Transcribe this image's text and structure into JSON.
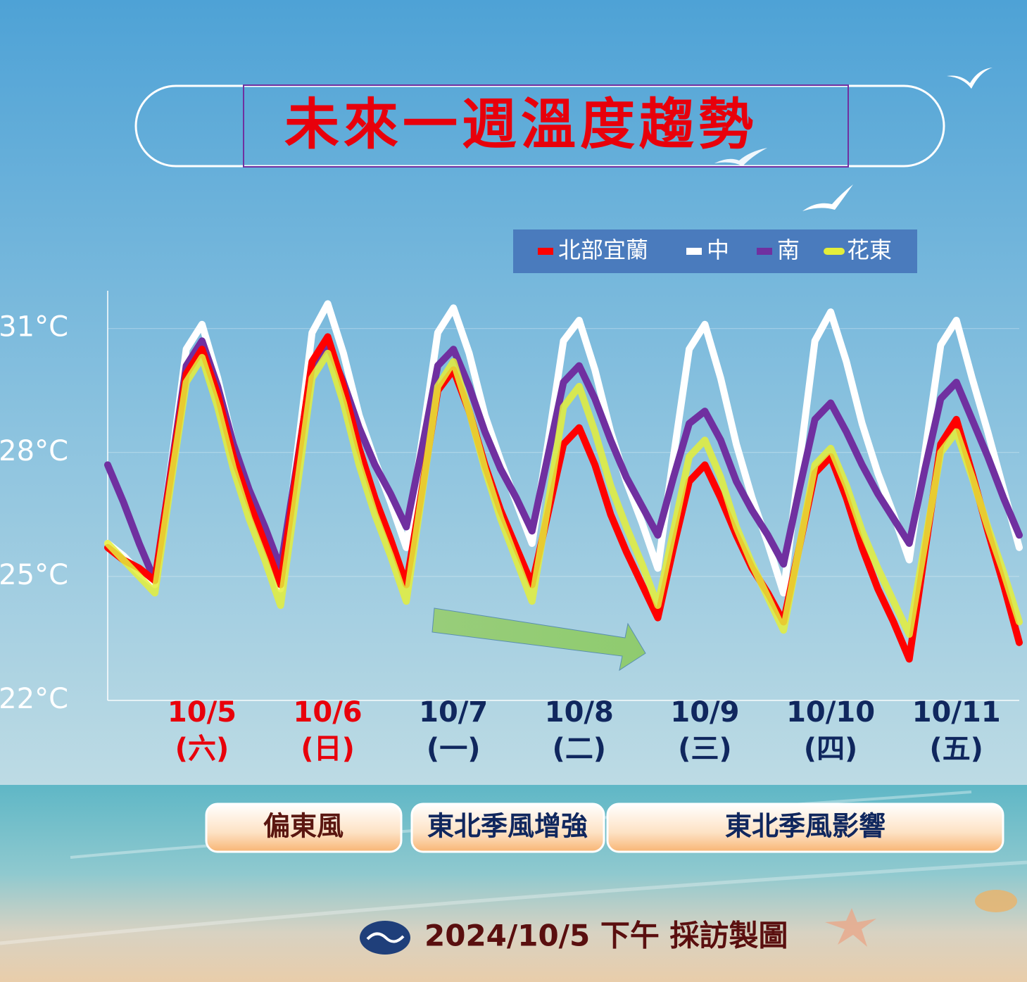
{
  "chart_data": {
    "type": "line",
    "title": "未來一週溫度趨勢",
    "categories": [
      null,
      null,
      null,
      null,
      null,
      null,
      "10/5",
      null,
      null,
      null,
      null,
      null,
      null,
      null,
      "10/6",
      null,
      null,
      null,
      null,
      null,
      null,
      null,
      "10/7",
      null,
      null,
      null,
      null,
      null,
      null,
      null,
      "10/8",
      null,
      null,
      null,
      null,
      null,
      null,
      null,
      "10/9",
      null,
      null,
      null,
      null,
      null,
      null,
      null,
      "10/10",
      null,
      null,
      null,
      null,
      null,
      null,
      null,
      "10/11",
      null,
      null,
      null,
      null
    ],
    "weekdays": [
      null,
      null,
      null,
      null,
      null,
      null,
      "(六)",
      null,
      null,
      null,
      null,
      null,
      null,
      null,
      "(日)",
      null,
      null,
      null,
      null,
      null,
      null,
      null,
      "(一)",
      null,
      null,
      null,
      null,
      null,
      null,
      null,
      "(二)",
      null,
      null,
      null,
      null,
      null,
      null,
      null,
      "(三)",
      null,
      null,
      null,
      null,
      null,
      null,
      null,
      "(四)",
      null,
      null,
      null,
      null,
      null,
      null,
      null,
      "(五)",
      null,
      null,
      null,
      null
    ],
    "label_colors": [
      null,
      null,
      null,
      null,
      null,
      null,
      "#e8000b",
      null,
      null,
      null,
      null,
      null,
      null,
      null,
      "#e8000b",
      null,
      null,
      null,
      null,
      null,
      null,
      null,
      "#10275e",
      null,
      null,
      null,
      null,
      null,
      null,
      null,
      "#10275e",
      null,
      null,
      null,
      null,
      null,
      null,
      null,
      "#10275e",
      null,
      null,
      null,
      null,
      null,
      null,
      null,
      "#10275e",
      null,
      null,
      null,
      null,
      null,
      null,
      null,
      "#10275e",
      null,
      null,
      null,
      null
    ],
    "series": [
      {
        "name": "北部宜蘭",
        "color": "#ff0000",
        "values": [
          25.7,
          25.4,
          25.2,
          24.9,
          27.4,
          29.9,
          30.5,
          29.4,
          27.9,
          26.8,
          25.8,
          24.8,
          27.5,
          30.2,
          30.8,
          29.6,
          28.1,
          26.9,
          25.9,
          24.8,
          27.1,
          29.5,
          30.0,
          29.0,
          27.7,
          26.6,
          25.7,
          24.8,
          26.5,
          28.2,
          28.6,
          27.7,
          26.5,
          25.6,
          24.8,
          24.0,
          25.7,
          27.3,
          27.7,
          26.9,
          26.0,
          25.2,
          24.6,
          23.9,
          25.7,
          27.5,
          27.9,
          26.9,
          25.7,
          24.7,
          23.9,
          23.0,
          25.6,
          28.2,
          28.8,
          27.5,
          26.1,
          24.8,
          23.4
        ]
      },
      {
        "name": "中",
        "color": "#ffffff",
        "values": [
          25.8,
          25.5,
          25.1,
          24.8,
          27.6,
          30.5,
          31.1,
          29.8,
          28.2,
          26.9,
          25.9,
          24.7,
          27.8,
          30.9,
          31.6,
          30.4,
          28.9,
          27.8,
          26.8,
          25.7,
          28.3,
          30.9,
          31.5,
          30.4,
          28.9,
          27.8,
          26.8,
          25.8,
          28.2,
          30.7,
          31.2,
          30.0,
          28.5,
          27.3,
          26.3,
          25.2,
          27.9,
          30.5,
          31.1,
          29.8,
          28.2,
          26.9,
          25.8,
          24.6,
          27.7,
          30.7,
          31.4,
          30.2,
          28.7,
          27.5,
          26.5,
          25.4,
          28.0,
          30.6,
          31.2,
          29.8,
          28.5,
          27.1,
          25.7
        ]
      },
      {
        "name": "南",
        "color": "#7030a0",
        "values": [
          27.7,
          26.8,
          25.8,
          24.9,
          27.5,
          30.1,
          30.7,
          29.6,
          28.2,
          27.1,
          26.2,
          25.2,
          27.6,
          30.1,
          30.6,
          29.7,
          28.6,
          27.7,
          27.0,
          26.2,
          28.1,
          30.1,
          30.5,
          29.6,
          28.5,
          27.6,
          26.9,
          26.1,
          27.9,
          29.7,
          30.1,
          29.3,
          28.3,
          27.4,
          26.7,
          26.0,
          27.4,
          28.7,
          29.0,
          28.3,
          27.3,
          26.6,
          26.0,
          25.3,
          27.1,
          28.8,
          29.2,
          28.5,
          27.7,
          27.0,
          26.4,
          25.8,
          27.6,
          29.3,
          29.7,
          28.8,
          27.9,
          26.9,
          26.0
        ]
      },
      {
        "name": "花東",
        "color": "#e4ee3a",
        "values": [
          25.8,
          25.4,
          25.0,
          24.6,
          27.2,
          29.7,
          30.3,
          29.1,
          27.6,
          26.4,
          25.4,
          24.3,
          27.0,
          29.8,
          30.4,
          29.2,
          27.7,
          26.5,
          25.5,
          24.4,
          27.0,
          29.6,
          30.2,
          29.0,
          27.6,
          26.4,
          25.4,
          24.4,
          26.7,
          29.1,
          29.6,
          28.5,
          27.2,
          26.2,
          25.3,
          24.3,
          26.1,
          27.9,
          28.3,
          27.4,
          26.2,
          25.3,
          24.5,
          23.7,
          25.7,
          27.7,
          28.1,
          27.2,
          26.1,
          25.2,
          24.4,
          23.6,
          25.8,
          28.0,
          28.5,
          27.4,
          26.2,
          25.1,
          23.9
        ]
      }
    ],
    "ylim": [
      22,
      32
    ],
    "yticks": [
      {
        "value": 22,
        "label": "22°C"
      },
      {
        "value": 25,
        "label": "25°C"
      },
      {
        "value": 28,
        "label": "28°C"
      },
      {
        "value": 31,
        "label": "31°C"
      }
    ],
    "grid": true,
    "legend": "top-right",
    "periods": [
      "偏東風",
      "東北季風增強",
      "東北季風影響"
    ],
    "footer": "2024/10/5 下午 採訪製圖"
  }
}
